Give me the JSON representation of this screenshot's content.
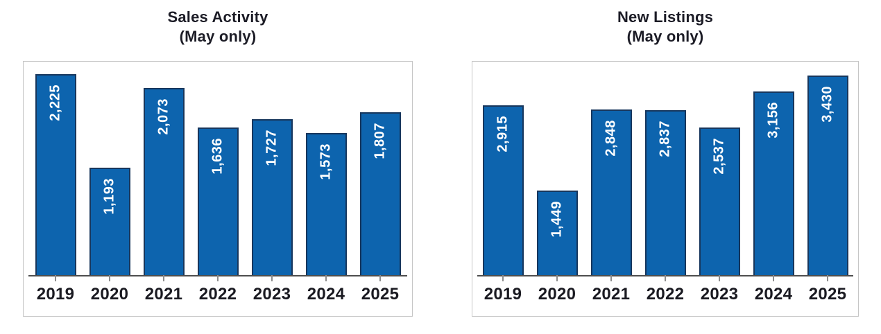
{
  "page": {
    "background": "#ffffff"
  },
  "colors": {
    "bar_fill": "#0d64ae",
    "bar_border": "#17365c",
    "value_label_text": "#ffffff",
    "title_text": "#1c1c26",
    "year_label_text": "#1a1a21",
    "axis_line": "#4d4d4d",
    "tick": "#8c8c8c",
    "frame_border": "#c5c5c5"
  },
  "chart_data": [
    {
      "type": "bar",
      "title": "Sales Activity",
      "subtitle": "(May only)",
      "categories": [
        "2019",
        "2020",
        "2021",
        "2022",
        "2023",
        "2024",
        "2025"
      ],
      "values": [
        2225,
        1193,
        2073,
        1636,
        1727,
        1573,
        1807
      ],
      "value_labels": [
        "2,225",
        "1,193",
        "2,073",
        "1,636",
        "1,727",
        "1,573",
        "1,807"
      ],
      "xlabel": "",
      "ylabel": "",
      "ylim": [
        0,
        2365
      ],
      "grid": false,
      "legend": "none",
      "value_label_rotation": "vertical-bottom-to-top",
      "value_label_position": "inside-top"
    },
    {
      "type": "bar",
      "title": "New Listings",
      "subtitle": "(May only)",
      "categories": [
        "2019",
        "2020",
        "2021",
        "2022",
        "2023",
        "2024",
        "2025"
      ],
      "values": [
        2915,
        1449,
        2848,
        2837,
        2537,
        3156,
        3430
      ],
      "value_labels": [
        "2,915",
        "1,449",
        "2,848",
        "2,837",
        "2,537",
        "3,156",
        "3,430"
      ],
      "xlabel": "",
      "ylabel": "",
      "ylim": [
        0,
        3670
      ],
      "grid": false,
      "legend": "none",
      "value_label_rotation": "vertical-bottom-to-top",
      "value_label_position": "inside-top"
    }
  ]
}
